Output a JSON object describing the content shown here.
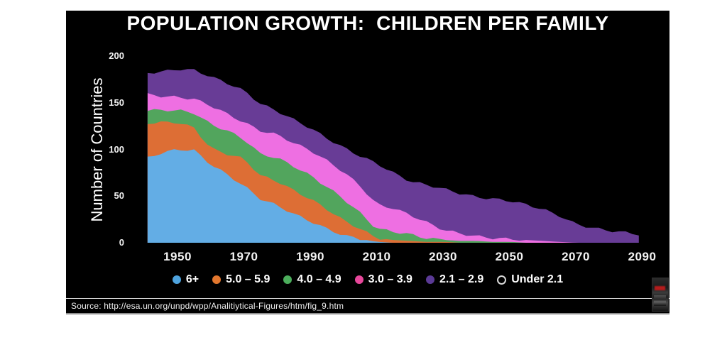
{
  "slide": {
    "title": "POPULATION GROWTH:  CHILDREN PER FAMILY",
    "source": "Source: http://esa.un.org/unpd/wpp/Analitiytical-Figures/htm/fig_9.htm",
    "background_color": "#000000",
    "thumbnail": "video-thumbnail"
  },
  "chart_data": {
    "type": "area",
    "stacked": true,
    "title": "POPULATION GROWTH:  CHILDREN PER FAMILY",
    "xlabel": "",
    "ylabel": "Number of Countries",
    "ylim": [
      0,
      200
    ],
    "xlim": [
      1941,
      2089
    ],
    "grid": false,
    "legend_position": "bottom",
    "y_ticks": [
      0,
      50,
      100,
      150,
      200
    ],
    "x_ticks": [
      1950,
      1970,
      1990,
      2010,
      2030,
      2050,
      2070,
      2090
    ],
    "years": [
      1941,
      1945,
      1950,
      1955,
      1960,
      1965,
      1970,
      1975,
      1980,
      1985,
      1990,
      1995,
      2000,
      2005,
      2010,
      2015,
      2020,
      2025,
      2030,
      2035,
      2040,
      2045,
      2050,
      2055,
      2060,
      2065,
      2070,
      2075,
      2080,
      2085,
      2089
    ],
    "series": [
      {
        "name": "6+",
        "color": "#63ADE5",
        "legend_color": "#4EA3DE",
        "values": [
          91,
          96,
          100,
          99,
          84,
          73,
          61,
          47,
          40,
          31,
          23,
          15,
          8,
          4,
          1,
          0,
          0,
          0,
          0,
          0,
          0,
          0,
          0,
          0,
          0,
          0,
          0,
          0,
          0,
          0,
          0
        ]
      },
      {
        "name": "5.0 – 5.9",
        "color": "#DD6E35",
        "legend_color": "#E2772E",
        "values": [
          37,
          33,
          29,
          24,
          17,
          22,
          29,
          25,
          26,
          25,
          24,
          21,
          16,
          11,
          4,
          3,
          2,
          1,
          1,
          0,
          0,
          0,
          0,
          0,
          0,
          0,
          0,
          0,
          0,
          0,
          0
        ]
      },
      {
        "name": "4.0 – 4.9",
        "color": "#52A55D",
        "legend_color": "#4CAE5C",
        "values": [
          14,
          13,
          13,
          16,
          26,
          25,
          21,
          23,
          25,
          26,
          25,
          24,
          23,
          17,
          10,
          9,
          7,
          4,
          2,
          2,
          2,
          1,
          1,
          0,
          0,
          0,
          0,
          0,
          0,
          0,
          0
        ]
      },
      {
        "name": "3.0 – 3.9",
        "color": "#EE6FE2",
        "legend_color": "#E8479B",
        "values": [
          17,
          15,
          14,
          15,
          20,
          18,
          18,
          25,
          25,
          25,
          27,
          28,
          29,
          29,
          26,
          25,
          21,
          17,
          11,
          8,
          5,
          4,
          3,
          3,
          2,
          1,
          0,
          0,
          0,
          0,
          0
        ]
      },
      {
        "name": "2.1 – 2.9",
        "color": "#683C96",
        "legend_color": "#5B3A96",
        "values": [
          23,
          26,
          30,
          31,
          31,
          33,
          34,
          29,
          25,
          25,
          24,
          24,
          26,
          32,
          44,
          38,
          36,
          40,
          44,
          43,
          42,
          42,
          41,
          38,
          34,
          28,
          20,
          16,
          13,
          11,
          9
        ]
      },
      {
        "name": "Under 2.1",
        "color": "#000000",
        "legend_style": "open-circle",
        "values": []
      }
    ]
  }
}
